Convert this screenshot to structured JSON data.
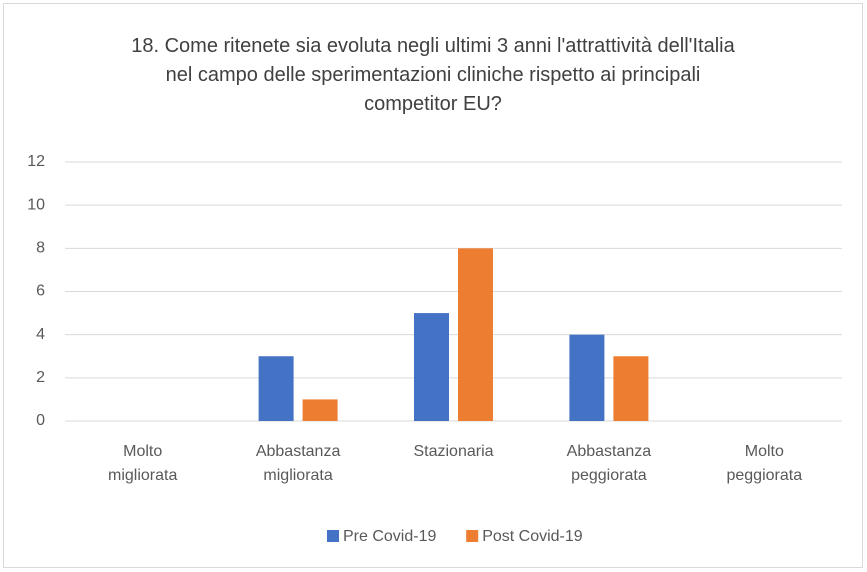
{
  "chart_data": {
    "type": "bar",
    "title": "18. Come ritenete sia evoluta negli ultimi 3 anni l'attrattività dell'Italia nel campo delle sperimentazioni cliniche rispetto ai principali competitor EU?",
    "categories": [
      "Molto migliorata",
      "Abbastanza migliorata",
      "Stazionaria",
      "Abbastanza peggiorata",
      "Molto peggiorata"
    ],
    "series": [
      {
        "name": "Pre Covid-19",
        "color": "#4472c4",
        "values": [
          0,
          3,
          5,
          4,
          0
        ]
      },
      {
        "name": "Post Covid-19",
        "color": "#ed7d31",
        "values": [
          0,
          1,
          8,
          3,
          0
        ]
      }
    ],
    "ylim": [
      0,
      12
    ],
    "yticks": [
      0,
      2,
      4,
      6,
      8,
      10,
      12
    ],
    "grid": true,
    "legend": "bottom"
  }
}
